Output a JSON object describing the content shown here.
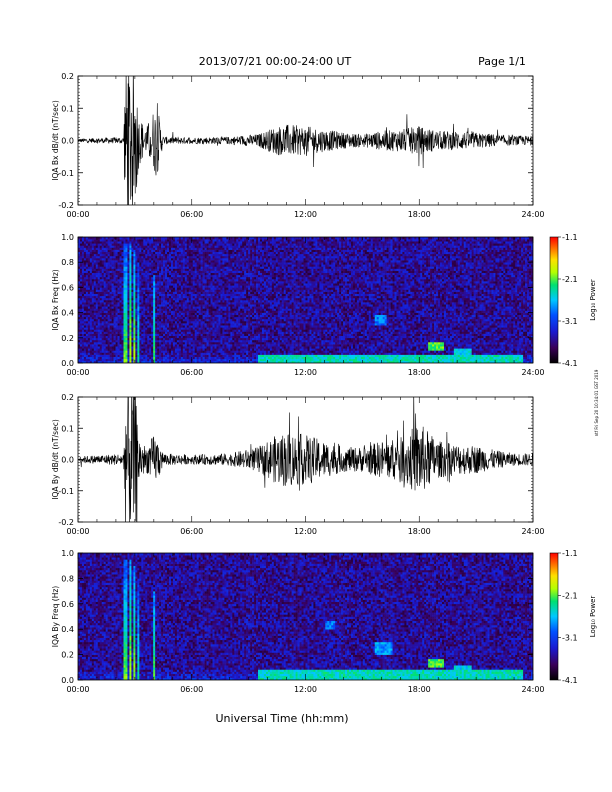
{
  "header": {
    "title": "2013/07/21  00:00-24:00 UT",
    "page": "Page 1/1"
  },
  "footer": {
    "xlabel": "Universal Time (hh:mm)",
    "side_stamp": "ntf Fri Sep 20 10:34:01 GST 2019"
  },
  "colors": {
    "trace": "#000000",
    "colormap": [
      "#000000",
      "#3a0058",
      "#1a1ad0",
      "#0050ff",
      "#00c8ff",
      "#00e070",
      "#b4ff00",
      "#ffe000",
      "#ff7000",
      "#ff0000"
    ]
  },
  "chart_data": [
    {
      "type": "line",
      "ylabel": "IQA Bx dB/dt (nT/sec)",
      "x_ticks": [
        "00:00",
        "06:00",
        "12:00",
        "18:00",
        "24:00"
      ],
      "xlim": [
        0,
        24
      ],
      "ylim": [
        -0.2,
        0.2
      ],
      "y_ticks": [
        "0.2",
        "0.1",
        "0.0",
        "-0.1",
        "-0.2"
      ],
      "noise_envelope": {
        "x": [
          0,
          2.4,
          2.5,
          2.6,
          2.8,
          3.0,
          3.2,
          3.4,
          3.6,
          4.0,
          4.2,
          4.5,
          6.0,
          8.0,
          9.5,
          10.5,
          11.0,
          12.0,
          13.0,
          14.0,
          15.0,
          16.0,
          17.0,
          18.0,
          19.0,
          20.0,
          21.0,
          22.0,
          23.0,
          24.0
        ],
        "amplitude": [
          0.006,
          0.01,
          0.25,
          0.25,
          0.25,
          0.25,
          0.08,
          0.06,
          0.04,
          0.1,
          0.1,
          0.012,
          0.01,
          0.012,
          0.02,
          0.045,
          0.05,
          0.045,
          0.035,
          0.025,
          0.02,
          0.03,
          0.035,
          0.045,
          0.03,
          0.03,
          0.025,
          0.02,
          0.015,
          0.015
        ]
      }
    },
    {
      "type": "heatmap",
      "ylabel": "IQA Bx Freq (Hz)",
      "x_ticks": [
        "00:00",
        "06:00",
        "12:00",
        "18:00",
        "24:00"
      ],
      "xlim": [
        0,
        24
      ],
      "ylim": [
        0,
        1.0
      ],
      "y_ticks": [
        "1.0",
        "0.8",
        "0.6",
        "0.4",
        "0.2",
        "0.0"
      ],
      "colorbar": {
        "label": "Log₁₀ Power",
        "range": [
          -4.1,
          -1.1
        ],
        "ticks": [
          "-1.1",
          "-2.1",
          "-3.1",
          "-4.1"
        ]
      },
      "bursts": [
        {
          "t": 2.5,
          "f_max": 0.95,
          "power": -2.2
        },
        {
          "t": 2.75,
          "f_max": 0.95,
          "power": -2.0
        },
        {
          "t": 2.95,
          "f_max": 0.9,
          "power": -2.1
        },
        {
          "t": 3.2,
          "f_max": 0.8,
          "power": -2.5
        },
        {
          "t": 4.0,
          "f_max": 0.7,
          "power": -2.3
        }
      ],
      "features": [
        {
          "t_range": [
            9.5,
            23.5
          ],
          "f_range": [
            0.0,
            0.06
          ],
          "power": -2.6
        },
        {
          "t_range": [
            15.7,
            16.3
          ],
          "f_range": [
            0.3,
            0.38
          ],
          "power": -3.0
        },
        {
          "t_range": [
            18.5,
            19.3
          ],
          "f_range": [
            0.1,
            0.17
          ],
          "power": -2.3
        },
        {
          "t_range": [
            19.8,
            20.8
          ],
          "f_range": [
            0.05,
            0.12
          ],
          "power": -2.7
        }
      ]
    },
    {
      "type": "line",
      "ylabel": "IQA By dB/dt (nT/sec)",
      "x_ticks": [
        "00:00",
        "06:00",
        "12:00",
        "18:00",
        "24:00"
      ],
      "xlim": [
        0,
        24
      ],
      "ylim": [
        -0.2,
        0.2
      ],
      "y_ticks": [
        "0.2",
        "0.1",
        "0.0",
        "-0.1",
        "-0.2"
      ],
      "noise_envelope": {
        "x": [
          0,
          2.4,
          2.5,
          2.6,
          2.8,
          3.0,
          3.2,
          3.4,
          3.6,
          4.0,
          4.2,
          4.5,
          6.0,
          8.0,
          9.5,
          10.5,
          11.0,
          12.0,
          13.0,
          14.0,
          15.0,
          16.0,
          17.0,
          18.0,
          19.0,
          20.0,
          21.0,
          22.0,
          23.0,
          24.0
        ],
        "amplitude": [
          0.01,
          0.02,
          0.25,
          0.25,
          0.25,
          0.25,
          0.08,
          0.06,
          0.04,
          0.08,
          0.07,
          0.02,
          0.015,
          0.02,
          0.04,
          0.08,
          0.09,
          0.08,
          0.06,
          0.04,
          0.04,
          0.06,
          0.07,
          0.12,
          0.06,
          0.05,
          0.045,
          0.03,
          0.02,
          0.02
        ]
      }
    },
    {
      "type": "heatmap",
      "ylabel": "IQA By Freq (Hz)",
      "x_ticks": [
        "00:00",
        "06:00",
        "12:00",
        "18:00",
        "24:00"
      ],
      "xlim": [
        0,
        24
      ],
      "ylim": [
        0,
        1.0
      ],
      "y_ticks": [
        "1.0",
        "0.8",
        "0.6",
        "0.4",
        "0.2",
        "0.0"
      ],
      "colorbar": {
        "label": "Log₁₀ Power",
        "range": [
          -4.1,
          -1.1
        ],
        "ticks": [
          "-1.1",
          "-2.1",
          "-3.1",
          "-4.1"
        ]
      },
      "bursts": [
        {
          "t": 2.5,
          "f_max": 0.95,
          "power": -2.2
        },
        {
          "t": 2.75,
          "f_max": 0.95,
          "power": -2.0
        },
        {
          "t": 2.95,
          "f_max": 0.9,
          "power": -2.1
        },
        {
          "t": 3.2,
          "f_max": 0.8,
          "power": -2.5
        },
        {
          "t": 4.0,
          "f_max": 0.7,
          "power": -2.3
        }
      ],
      "features": [
        {
          "t_range": [
            9.5,
            23.5
          ],
          "f_range": [
            0.0,
            0.08
          ],
          "power": -2.6
        },
        {
          "t_range": [
            13.0,
            13.6
          ],
          "f_range": [
            0.4,
            0.47
          ],
          "power": -3.0
        },
        {
          "t_range": [
            15.7,
            16.6
          ],
          "f_range": [
            0.2,
            0.3
          ],
          "power": -2.9
        },
        {
          "t_range": [
            18.5,
            19.3
          ],
          "f_range": [
            0.1,
            0.17
          ],
          "power": -2.3
        },
        {
          "t_range": [
            19.8,
            20.8
          ],
          "f_range": [
            0.05,
            0.12
          ],
          "power": -2.7
        }
      ]
    }
  ]
}
